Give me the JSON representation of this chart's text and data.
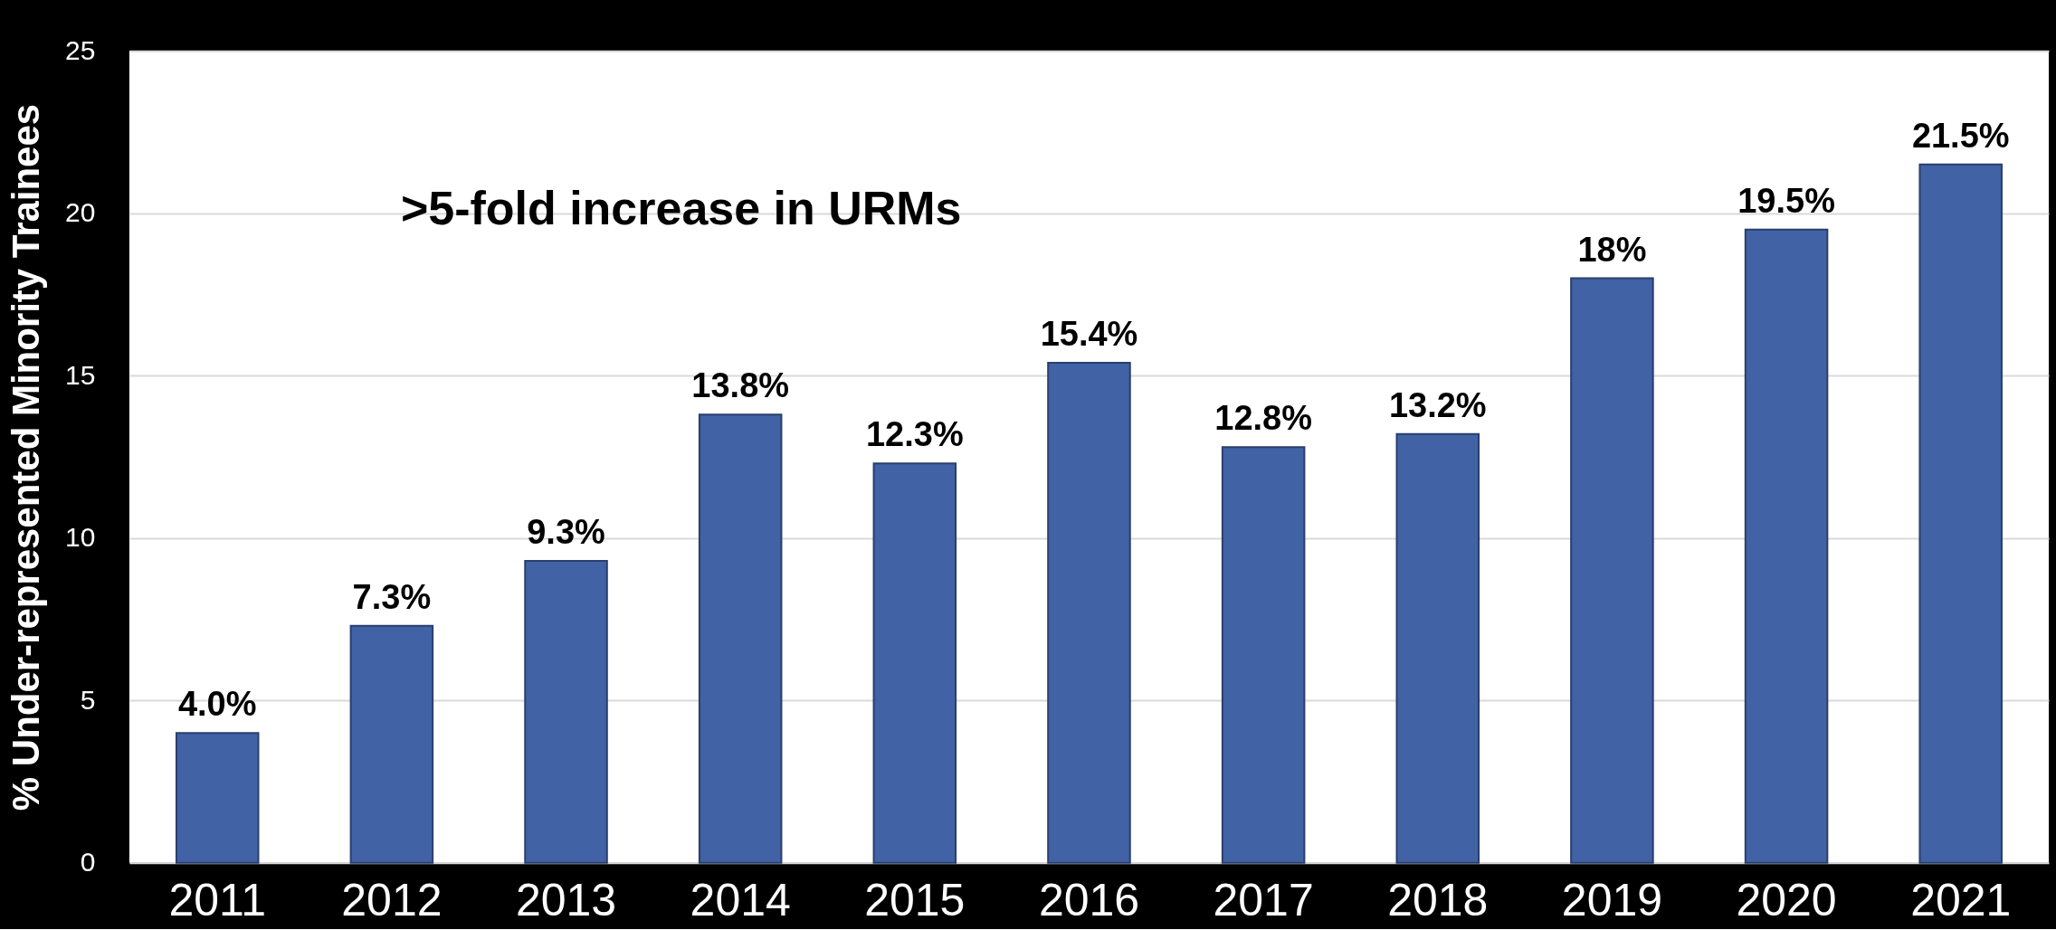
{
  "chart_data": {
    "type": "bar",
    "ylabel": "% Under-represented Minority Trainees",
    "categories": [
      "2011",
      "2012",
      "2013",
      "2014",
      "2015",
      "2016",
      "2017",
      "2018",
      "2019",
      "2020",
      "2021"
    ],
    "values": [
      4.0,
      7.3,
      9.3,
      13.8,
      12.3,
      15.4,
      12.8,
      13.2,
      18,
      19.5,
      21.5
    ],
    "value_labels": [
      "4.0%",
      "7.3%",
      "9.3%",
      "13.8%",
      "12.3%",
      "15.4%",
      "12.8%",
      "13.2%",
      "18%",
      "19.5%",
      "21.5%"
    ],
    "color": "#4162a4",
    "ylim": [
      0,
      25
    ],
    "yticks": [
      0,
      5,
      10,
      15,
      20,
      25
    ],
    "grid": "y",
    "annotations": [
      ">5-fold increase in URMs"
    ]
  }
}
